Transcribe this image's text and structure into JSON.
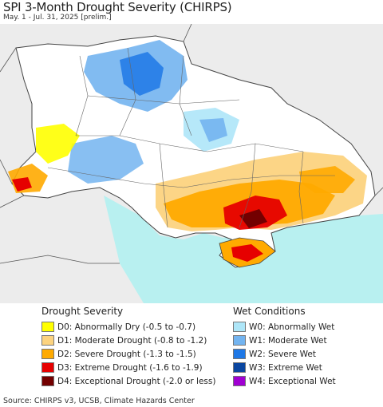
{
  "header": {
    "title": "SPI 3-Month Drought Severity (CHIRPS)",
    "subtitle": "May. 1 - Jul. 31, 2025 [prelim.]"
  },
  "legend": {
    "drought": {
      "heading": "Drought Severity",
      "items": [
        {
          "label": "D0: Abnormally Dry (-0.5 to -0.7)",
          "color": "#ffff00"
        },
        {
          "label": "D1: Moderate Drought (-0.8 to -1.2)",
          "color": "#fcd37f"
        },
        {
          "label": "D2: Severe Drought (-1.3 to -1.5)",
          "color": "#ffaa00"
        },
        {
          "label": "D3: Extreme Drought (-1.6 to -1.9)",
          "color": "#e60000"
        },
        {
          "label": "D4: Exceptional Drought (-2.0 or less)",
          "color": "#730000"
        }
      ]
    },
    "wet": {
      "heading": "Wet Conditions",
      "items": [
        {
          "label": "W0: Abnormally Wet",
          "color": "#aee6f8"
        },
        {
          "label": "W1: Moderate Wet",
          "color": "#73b4f0"
        },
        {
          "label": "W2: Severe Wet",
          "color": "#1e78e6"
        },
        {
          "label": "W3: Extreme Wet",
          "color": "#0a46a0"
        },
        {
          "label": "W4: Exceptional Wet",
          "color": "#a000d2"
        }
      ]
    }
  },
  "footer": {
    "source": "Source: CHIRPS v3, UCSB, Climate Hazards Center"
  }
}
